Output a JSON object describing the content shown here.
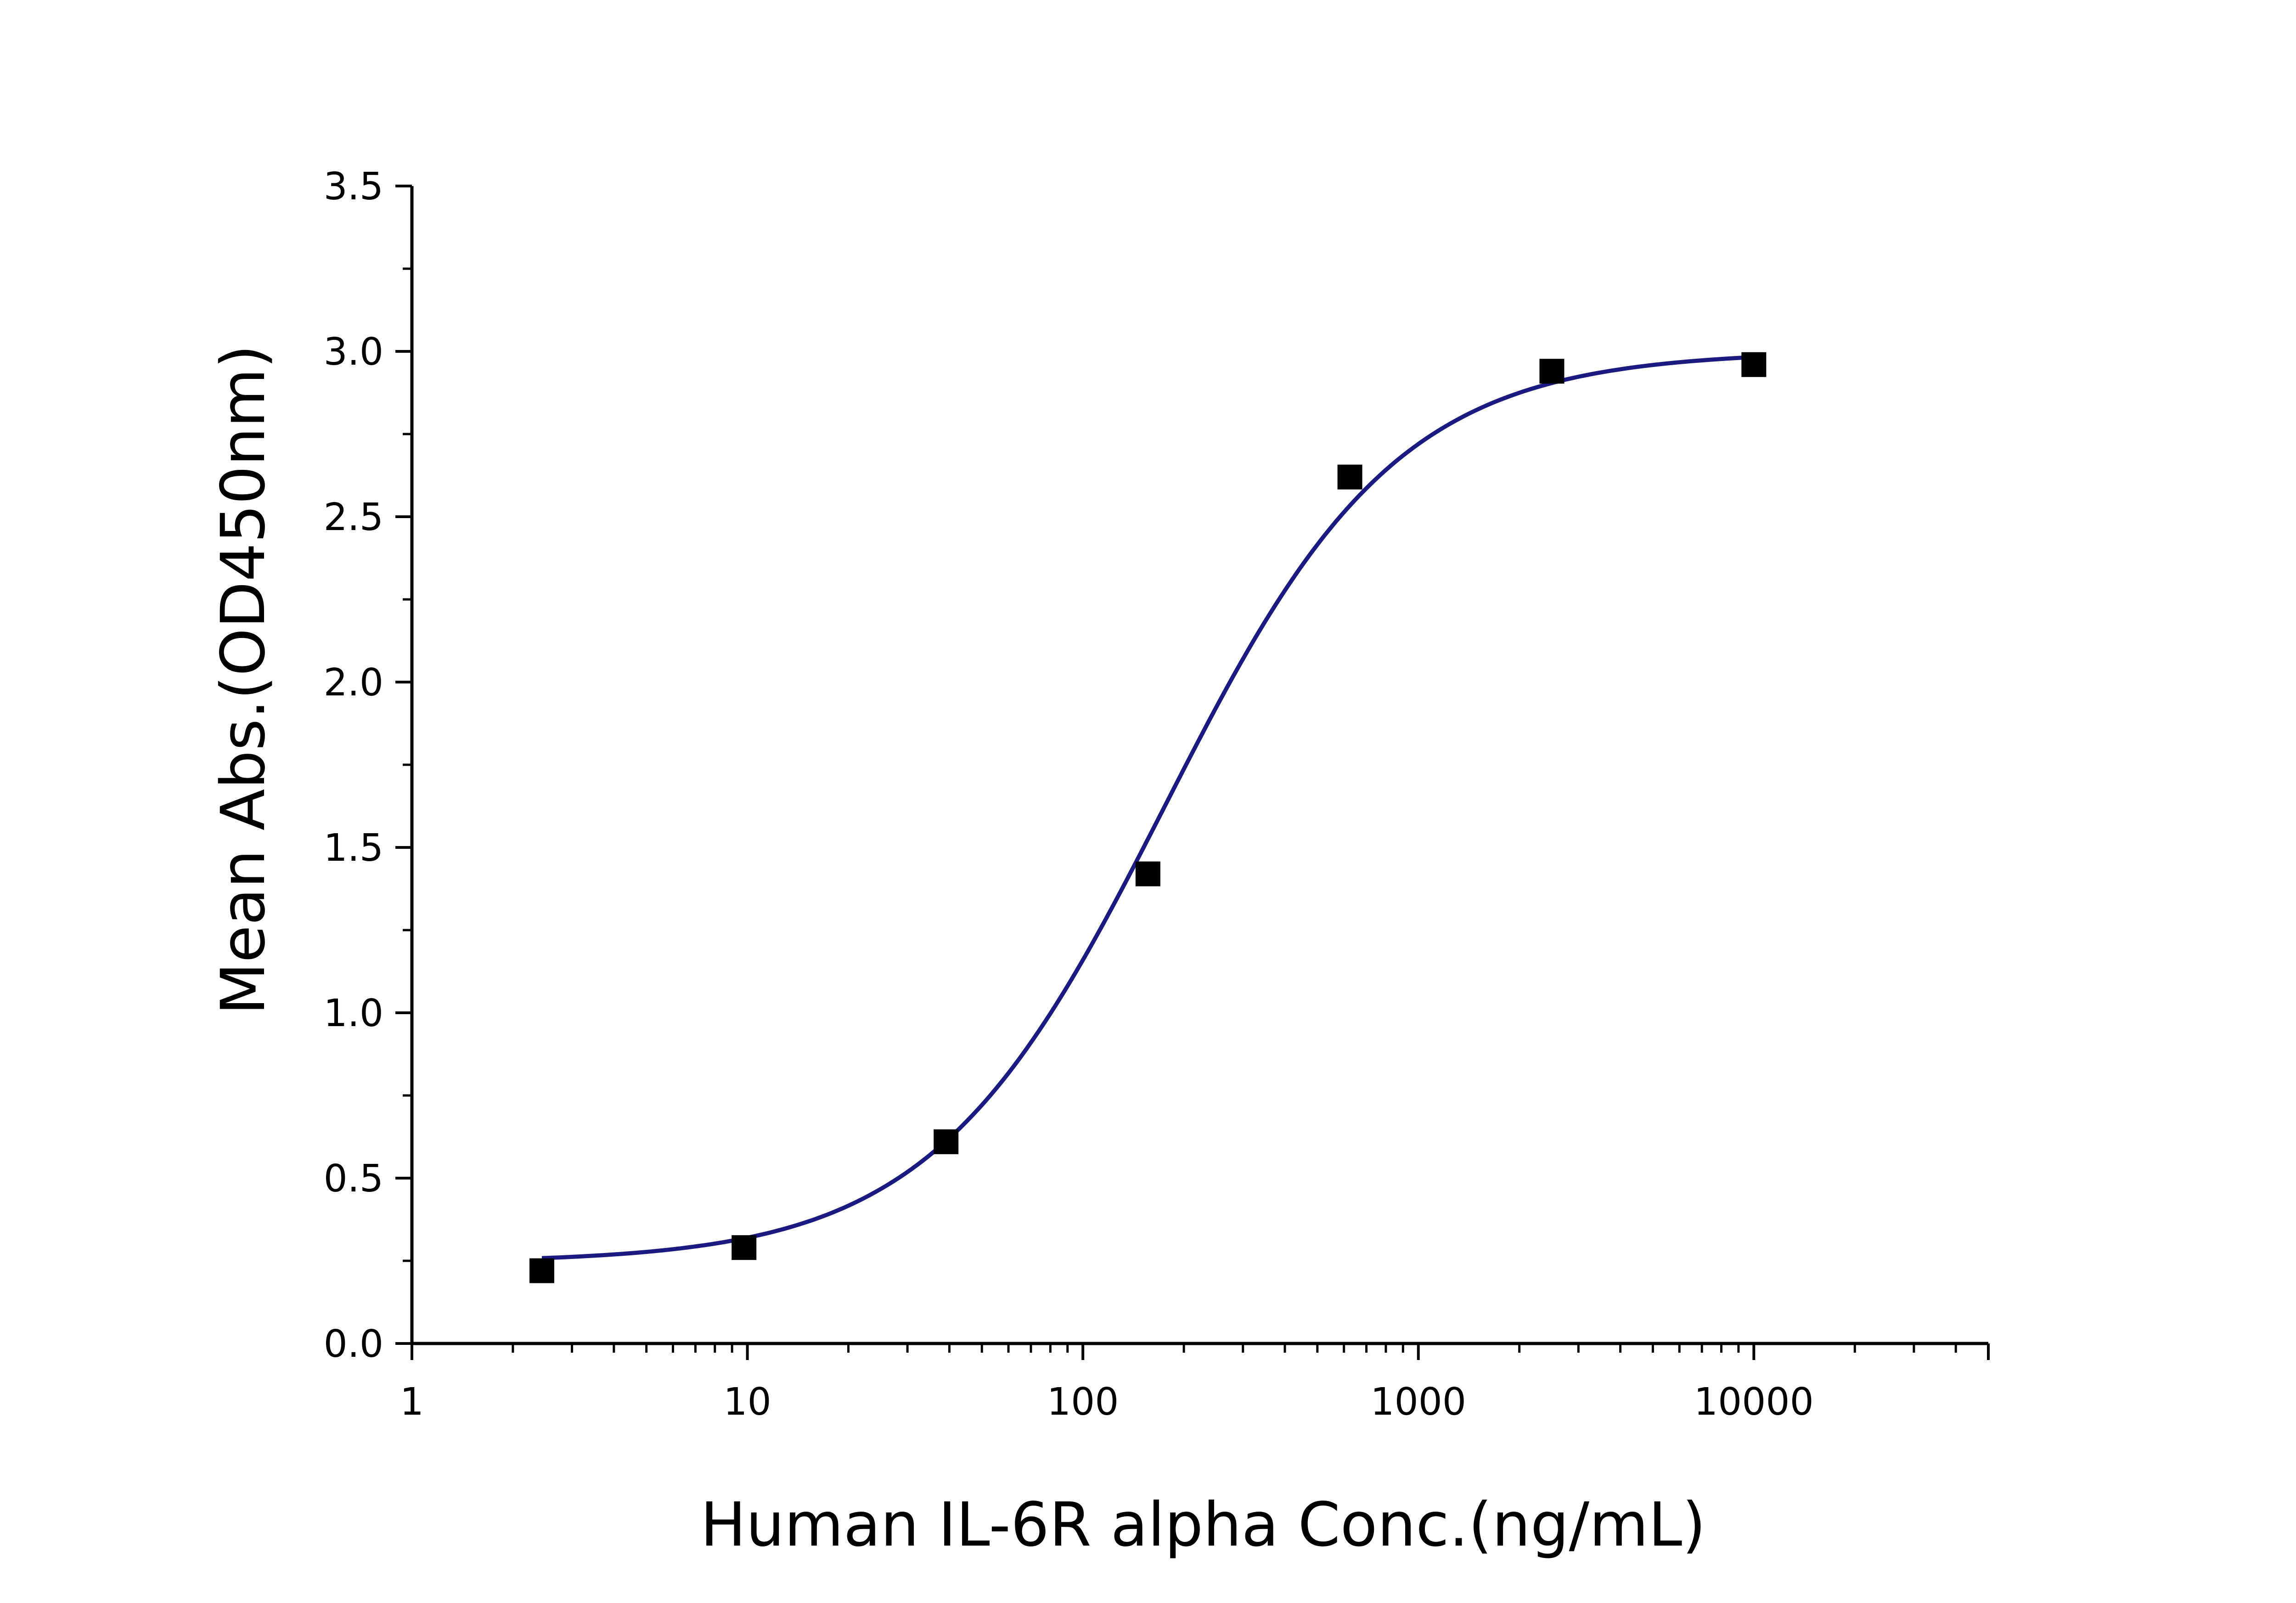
{
  "chart_data": {
    "type": "scatter",
    "title": "",
    "xlabel": "Human IL-6R alpha Conc.(ng/mL)",
    "ylabel": "Mean Abs.(OD450nm)",
    "x_scale": "log",
    "xlim": [
      1,
      50000
    ],
    "ylim": [
      0,
      3.5
    ],
    "x_tick_labels": [
      "1",
      "10",
      "100",
      "1000",
      "10000"
    ],
    "x_tick_values": [
      1,
      10,
      100,
      1000,
      10000
    ],
    "y_tick_labels": [
      "0.0",
      "0.5",
      "1.0",
      "1.5",
      "2.0",
      "2.5",
      "3.0",
      "3.5"
    ],
    "y_tick_values": [
      0,
      0.5,
      1.0,
      1.5,
      2.0,
      2.5,
      3.0,
      3.5
    ],
    "grid": false,
    "legend": "none",
    "series": [
      {
        "marker": "square",
        "color": "#000000",
        "points": [
          {
            "x": 2.44,
            "y": 0.22
          },
          {
            "x": 9.77,
            "y": 0.29
          },
          {
            "x": 39.1,
            "y": 0.61
          },
          {
            "x": 156.3,
            "y": 1.42
          },
          {
            "x": 625,
            "y": 2.62
          },
          {
            "x": 2500,
            "y": 2.94
          },
          {
            "x": 10000,
            "y": 2.96
          }
        ]
      }
    ],
    "fit_curve": {
      "type": "4PL",
      "color": "#1a1a80",
      "bottom": 0.245,
      "top": 3.0,
      "ec50": 175,
      "hill": 1.25,
      "x_range": [
        2.44,
        10000
      ]
    }
  }
}
